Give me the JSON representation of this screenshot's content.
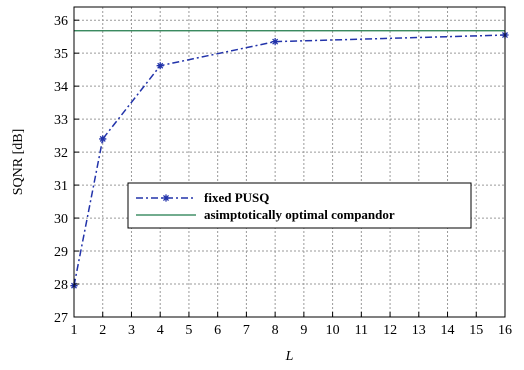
{
  "chart_data": {
    "type": "line",
    "title": "",
    "xlabel": "L",
    "ylabel": "SQNR [dB]",
    "xlim": [
      1,
      16
    ],
    "ylim": [
      27,
      36.4
    ],
    "x_ticks": [
      1,
      2,
      3,
      4,
      5,
      6,
      7,
      8,
      9,
      10,
      11,
      12,
      13,
      14,
      15,
      16
    ],
    "y_ticks": [
      27,
      28,
      29,
      30,
      31,
      32,
      33,
      34,
      35,
      36
    ],
    "grid": true,
    "legend_position": "center",
    "series": [
      {
        "name": "fixed PUSQ",
        "style": "dash-dot",
        "marker": "star",
        "color": "#2233aa",
        "x": [
          1,
          2,
          4,
          8,
          16
        ],
        "y": [
          27.95,
          32.4,
          34.62,
          35.35,
          35.55
        ]
      },
      {
        "name": "asimptotically optimal compandor",
        "style": "solid",
        "marker": "none",
        "color": "#1f7a4a",
        "x": [
          1,
          16
        ],
        "y": [
          35.68,
          35.68
        ]
      }
    ]
  }
}
